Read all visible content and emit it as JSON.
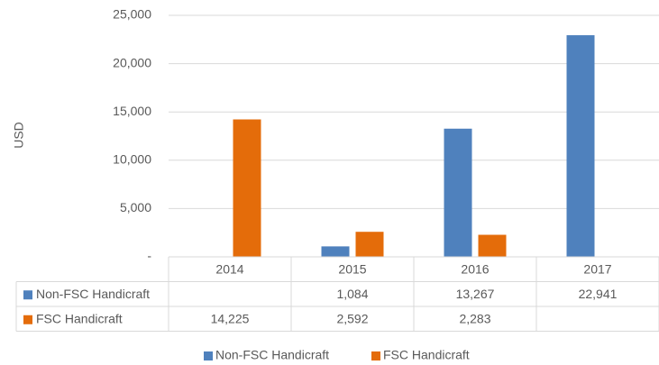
{
  "chart_data": {
    "type": "bar",
    "y_label": "USD",
    "categories": [
      "2014",
      "2015",
      "2016",
      "2017"
    ],
    "series": [
      {
        "name": "Non-FSC Handicraft",
        "color": "#4f81bd",
        "values": [
          null,
          1084,
          13267,
          22941
        ],
        "value_labels": [
          null,
          "1,084",
          "13,267",
          "22,941"
        ]
      },
      {
        "name": "FSC Handicraft",
        "color": "#e46c0a",
        "values": [
          14225,
          2592,
          2283,
          null
        ],
        "value_labels": [
          "14,225",
          "2,592",
          "2,283",
          null
        ]
      }
    ],
    "ylim": [
      0,
      25000
    ],
    "yticks": [
      {
        "value": 0,
        "label": "-"
      },
      {
        "value": 5000,
        "label": "5,000"
      },
      {
        "value": 10000,
        "label": "10,000"
      },
      {
        "value": 15000,
        "label": "15,000"
      },
      {
        "value": 20000,
        "label": "20,000"
      },
      {
        "value": 25000,
        "label": "25,000"
      }
    ],
    "grid": true,
    "legend": "bottom",
    "data_table": true
  }
}
